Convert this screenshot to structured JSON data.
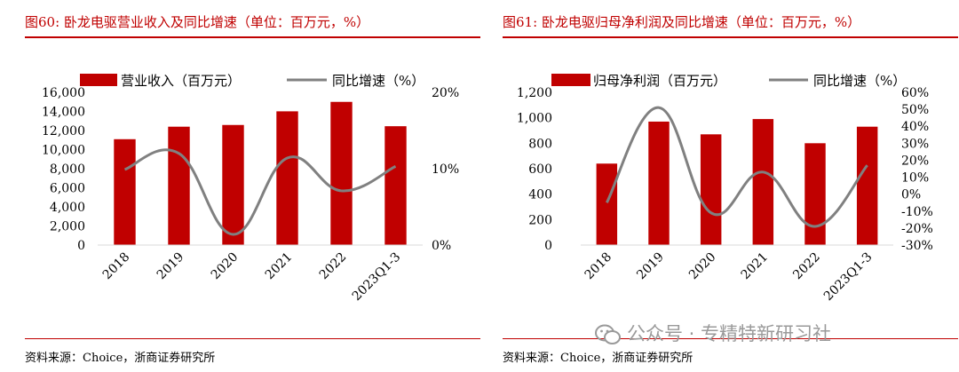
{
  "charts": [
    {
      "title": "图60:   卧龙电驱营业收入及同比增速（单位：百万元，%）",
      "source": "资料来源：Choice，浙商证券研究所"
    },
    {
      "title": "图61:   卧龙电驱归母净利润及同比增速（单位：百万元，%）",
      "source": "资料来源：Choice，浙商证券研究所"
    }
  ],
  "watermark": "公众号 · 专精特新研习社",
  "colors": {
    "bar": "#c00000",
    "line": "#808080",
    "title": "#c00000"
  },
  "chart_data": [
    {
      "type": "bar",
      "categories": [
        "2018",
        "2019",
        "2020",
        "2021",
        "2022",
        "2023Q1-3"
      ],
      "series": [
        {
          "name": "营业收入（百万元）",
          "kind": "bar",
          "axis": "left",
          "values": [
            11090,
            12400,
            12580,
            14010,
            15000,
            12450
          ]
        },
        {
          "name": "同比增速（%）",
          "kind": "line",
          "axis": "right",
          "values": [
            9.9,
            12.0,
            1.4,
            11.4,
            7.1,
            10.3
          ]
        }
      ],
      "ylim_left": [
        0,
        16000
      ],
      "yticks_left": [
        "0",
        "2,000",
        "4,000",
        "6,000",
        "8,000",
        "10,000",
        "12,000",
        "14,000",
        "16,000"
      ],
      "ylim_right": [
        0,
        20
      ],
      "yticks_right": [
        "0%",
        "10%",
        "20%"
      ],
      "legend": [
        "营业收入（百万元）",
        "同比增速（%）"
      ]
    },
    {
      "type": "bar",
      "categories": [
        "2018",
        "2019",
        "2020",
        "2021",
        "2022",
        "2023Q1-3"
      ],
      "series": [
        {
          "name": "归母净利润（百万元）",
          "kind": "bar",
          "axis": "left",
          "values": [
            640,
            970,
            870,
            990,
            800,
            930
          ]
        },
        {
          "name": "同比增速（%）",
          "kind": "line",
          "axis": "right",
          "values": [
            -5,
            51,
            -11,
            13,
            -19,
            17
          ]
        }
      ],
      "ylim_left": [
        0,
        1200
      ],
      "yticks_left": [
        "0",
        "200",
        "400",
        "600",
        "800",
        "1,000",
        "1,200"
      ],
      "ylim_right": [
        -30,
        60
      ],
      "yticks_right": [
        "-30%",
        "-20%",
        "-10%",
        "0%",
        "10%",
        "20%",
        "30%",
        "40%",
        "50%",
        "60%"
      ],
      "legend": [
        "归母净利润（百万元）",
        "同比增速（%）"
      ]
    }
  ]
}
